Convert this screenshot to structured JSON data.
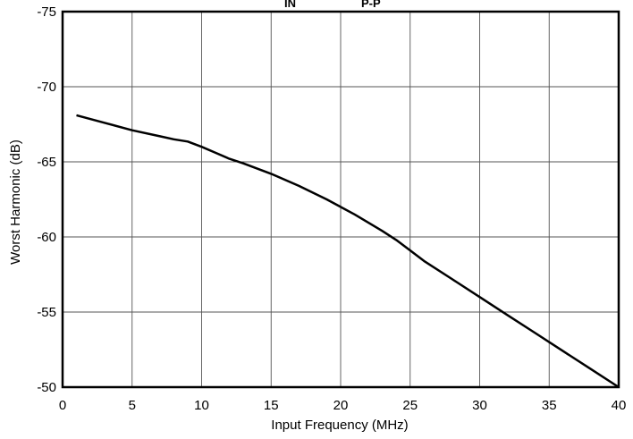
{
  "chart_data": {
    "type": "line",
    "title_fragments": [
      "IN",
      "P-P"
    ],
    "xlabel": "Input Frequency (MHz)",
    "ylabel": "Worst Harmonic (dB)",
    "xlim": [
      0,
      40
    ],
    "ylim": [
      -50,
      -75
    ],
    "x_ticks": [
      0,
      5,
      10,
      15,
      20,
      25,
      30,
      35,
      40
    ],
    "y_ticks": [
      -75,
      -70,
      -65,
      -60,
      -55,
      -50
    ],
    "grid": true,
    "series": [
      {
        "x": [
          1,
          3,
          5,
          7,
          8,
          9,
          10,
          11,
          12,
          13,
          15,
          17,
          19,
          21,
          23,
          24,
          25,
          26,
          28,
          30,
          32,
          34,
          36,
          38,
          40
        ],
        "y": [
          -68.1,
          -67.6,
          -67.1,
          -66.7,
          -66.5,
          -66.35,
          -66.0,
          -65.6,
          -65.2,
          -64.9,
          -64.2,
          -63.4,
          -62.5,
          -61.5,
          -60.4,
          -59.8,
          -59.1,
          -58.4,
          -57.2,
          -56.0,
          -54.8,
          -53.6,
          -52.4,
          -51.2,
          -50.0
        ]
      }
    ]
  }
}
